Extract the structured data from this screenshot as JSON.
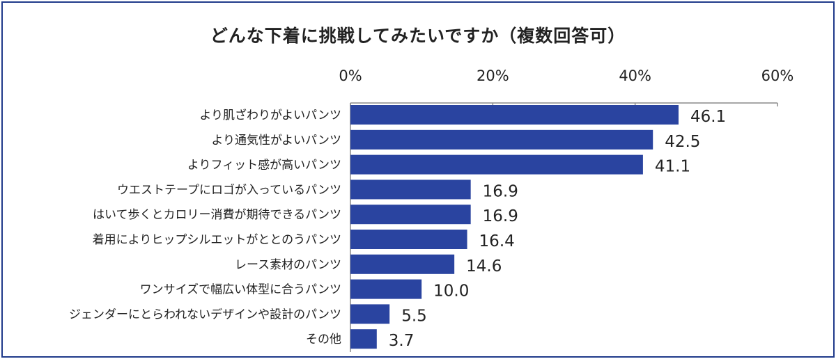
{
  "chart_data": {
    "type": "bar",
    "orientation": "horizontal",
    "title": "どんな下着に挑戦してみたいですか（複数回答可）",
    "xlim": [
      0,
      60
    ],
    "ticks": [
      0,
      20,
      40,
      60
    ],
    "tick_labels": [
      "0%",
      "20%",
      "40%",
      "60%"
    ],
    "categories": [
      "より肌ざわりがよいパンツ",
      "より通気性がよいパンツ",
      "よりフィット感が高いパンツ",
      "ウエストテープにロゴが入っているパンツ",
      "はいて歩くとカロリー消費が期待できるパンツ",
      "着用によりヒップシルエットがととのうパンツ",
      "レース素材のパンツ",
      "ワンサイズで幅広い体型に合うパンツ",
      "ジェンダーにとらわれないデザインや設計のパンツ",
      "その他"
    ],
    "values": [
      46.1,
      42.5,
      41.1,
      16.9,
      16.9,
      16.4,
      14.6,
      10.0,
      5.5,
      3.7
    ],
    "value_labels": [
      "46.1",
      "42.5",
      "41.1",
      "16.9",
      "16.9",
      "16.4",
      "14.6",
      "10.0",
      "5.5",
      "3.7"
    ],
    "bar_color": "#2a44a0",
    "legend": "none"
  }
}
